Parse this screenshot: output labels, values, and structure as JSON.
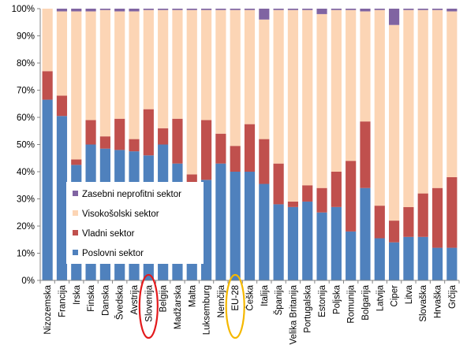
{
  "chart_data": {
    "type": "bar",
    "stacked": true,
    "categories": [
      "Nizozemska",
      "Francija",
      "Irska",
      "Finska",
      "Danska",
      "Švedska",
      "Avstrija",
      "Slovenija",
      "Belgija",
      "Madžarska",
      "Malta",
      "Luksemburg",
      "Nemčija",
      "EU-28",
      "Češka",
      "Italija",
      "Španija",
      "Velika Britanija",
      "Portugalska",
      "Estonija",
      "Poljska",
      "Romunija",
      "Bolgarija",
      "Latvija",
      "Ciper",
      "Litva",
      "Slovaška",
      "Hrvaška",
      "Grčija"
    ],
    "series": [
      {
        "name": "Poslovni sektor",
        "color": "#4f81bd",
        "values": [
          66.5,
          60.5,
          42.5,
          50,
          48.5,
          48,
          47.5,
          46,
          50,
          43,
          36,
          37,
          43,
          40,
          40,
          35.5,
          28,
          27,
          29,
          25,
          27,
          18,
          34,
          15.5,
          14,
          16,
          16,
          12,
          12
        ]
      },
      {
        "name": "Vladni sektor",
        "color": "#c0504d",
        "values": [
          10.5,
          7.5,
          2,
          9,
          4.5,
          11.5,
          4.5,
          17,
          6,
          16.5,
          3,
          22,
          11,
          9.5,
          17.5,
          16.5,
          15,
          2,
          6,
          9,
          13,
          26,
          24.5,
          12,
          8,
          11,
          16,
          22,
          26
        ]
      },
      {
        "name": "Visokošolski sektor",
        "color": "#fcd5b5",
        "values": [
          23,
          31,
          54.5,
          40,
          46.5,
          39.5,
          47,
          36.5,
          43.5,
          40,
          60.5,
          40.5,
          45.5,
          50,
          42,
          44,
          56.5,
          70.5,
          64.5,
          64,
          59.5,
          55.5,
          40.5,
          72,
          72,
          72.5,
          67.5,
          65.5,
          61
        ]
      },
      {
        "name": "Zasebni neprofitni sektor",
        "color": "#8064a2",
        "values": [
          0,
          1,
          1,
          1,
          0.5,
          1,
          1,
          0.5,
          0.5,
          0.5,
          0.5,
          0.5,
          0.5,
          0.5,
          0.5,
          4,
          0.5,
          0.5,
          0.5,
          2,
          0.5,
          0.5,
          1,
          0.5,
          6,
          0.5,
          0.5,
          0.5,
          1
        ]
      }
    ],
    "ylim": [
      0,
      100
    ],
    "yticks": [
      "0%",
      "10%",
      "20%",
      "30%",
      "40%",
      "50%",
      "60%",
      "70%",
      "80%",
      "90%",
      "100%"
    ],
    "legend_order": [
      "Zasebni neprofitni sektor",
      "Visokošolski sektor",
      "Vladni sektor",
      "Poslovni sektor"
    ],
    "legend_placement": "inside-lower-left",
    "grid": false,
    "highlights": [
      {
        "category": "Slovenija",
        "shape": "ellipse",
        "color": "#e31a1c"
      },
      {
        "category": "EU-28",
        "shape": "ellipse",
        "color": "#f5b800"
      }
    ]
  }
}
